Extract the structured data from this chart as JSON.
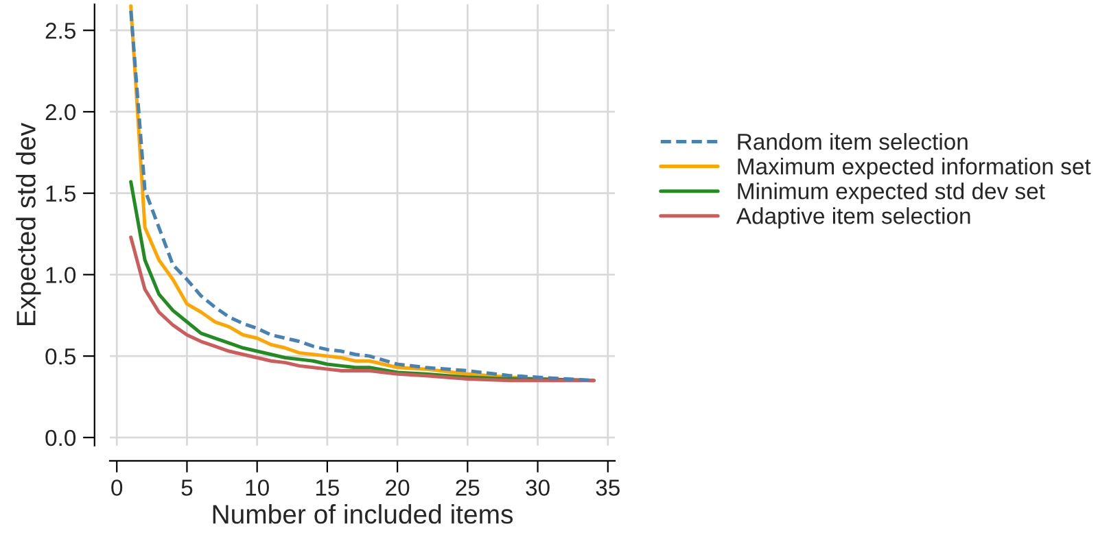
{
  "chart_data": {
    "type": "line",
    "xlabel": "Number of included items",
    "ylabel": "Expected std dev",
    "xlim": [
      -0.5,
      35.5
    ],
    "ylim": [
      -0.05,
      2.66
    ],
    "xticks": [
      0,
      5,
      10,
      15,
      20,
      25,
      30,
      35
    ],
    "yticks": [
      {
        "value": 0,
        "label": "0.0"
      },
      {
        "value": 0.5,
        "label": "0.5"
      },
      {
        "value": 1,
        "label": "1.0"
      },
      {
        "value": 1.5,
        "label": "1.5"
      },
      {
        "value": 2,
        "label": "2.0"
      },
      {
        "value": 2.5,
        "label": "2.5"
      }
    ],
    "grid": true,
    "legend": "right",
    "marker": "none",
    "series": [
      {
        "name": "Random item selection",
        "color": "#4682b4",
        "line_style": "dashed",
        "x": [
          1,
          2,
          3,
          4,
          5,
          6,
          7,
          8,
          9,
          10,
          11,
          12,
          13,
          14,
          15,
          16,
          17,
          18,
          20,
          22,
          25,
          28,
          30,
          34
        ],
        "values": [
          2.62,
          1.52,
          1.29,
          1.06,
          0.97,
          0.87,
          0.8,
          0.74,
          0.7,
          0.67,
          0.63,
          0.61,
          0.59,
          0.56,
          0.54,
          0.53,
          0.51,
          0.5,
          0.45,
          0.43,
          0.41,
          0.38,
          0.37,
          0.35
        ]
      },
      {
        "name": "Maximum expected information set",
        "color": "#ffa500",
        "line_style": "solid",
        "x": [
          1,
          2,
          3,
          4,
          5,
          6,
          7,
          8,
          9,
          10,
          11,
          12,
          13,
          14,
          15,
          16,
          17,
          18,
          20,
          22,
          25,
          28,
          30,
          34
        ],
        "values": [
          2.65,
          1.29,
          1.09,
          0.97,
          0.82,
          0.77,
          0.71,
          0.68,
          0.63,
          0.61,
          0.57,
          0.55,
          0.52,
          0.51,
          0.5,
          0.49,
          0.47,
          0.47,
          0.43,
          0.42,
          0.39,
          0.37,
          0.36,
          0.35
        ]
      },
      {
        "name": "Minimum expected std dev set",
        "color": "#228b22",
        "line_style": "solid",
        "x": [
          1,
          2,
          3,
          4,
          5,
          6,
          7,
          8,
          9,
          10,
          11,
          12,
          13,
          14,
          15,
          16,
          17,
          18,
          20,
          22,
          25,
          28,
          30,
          34
        ],
        "values": [
          1.57,
          1.09,
          0.88,
          0.78,
          0.71,
          0.64,
          0.61,
          0.58,
          0.55,
          0.53,
          0.51,
          0.49,
          0.48,
          0.47,
          0.45,
          0.44,
          0.43,
          0.43,
          0.4,
          0.39,
          0.37,
          0.36,
          0.36,
          0.35
        ]
      },
      {
        "name": "Adaptive item selection",
        "color": "#cd5c5c",
        "line_style": "solid",
        "x": [
          1,
          2,
          3,
          4,
          5,
          6,
          7,
          8,
          9,
          10,
          11,
          12,
          13,
          14,
          15,
          16,
          17,
          18,
          20,
          22,
          25,
          28,
          30,
          34
        ],
        "values": [
          1.23,
          0.91,
          0.77,
          0.69,
          0.63,
          0.59,
          0.56,
          0.53,
          0.51,
          0.49,
          0.47,
          0.46,
          0.44,
          0.43,
          0.42,
          0.41,
          0.41,
          0.41,
          0.39,
          0.38,
          0.36,
          0.35,
          0.35,
          0.35
        ]
      }
    ]
  }
}
